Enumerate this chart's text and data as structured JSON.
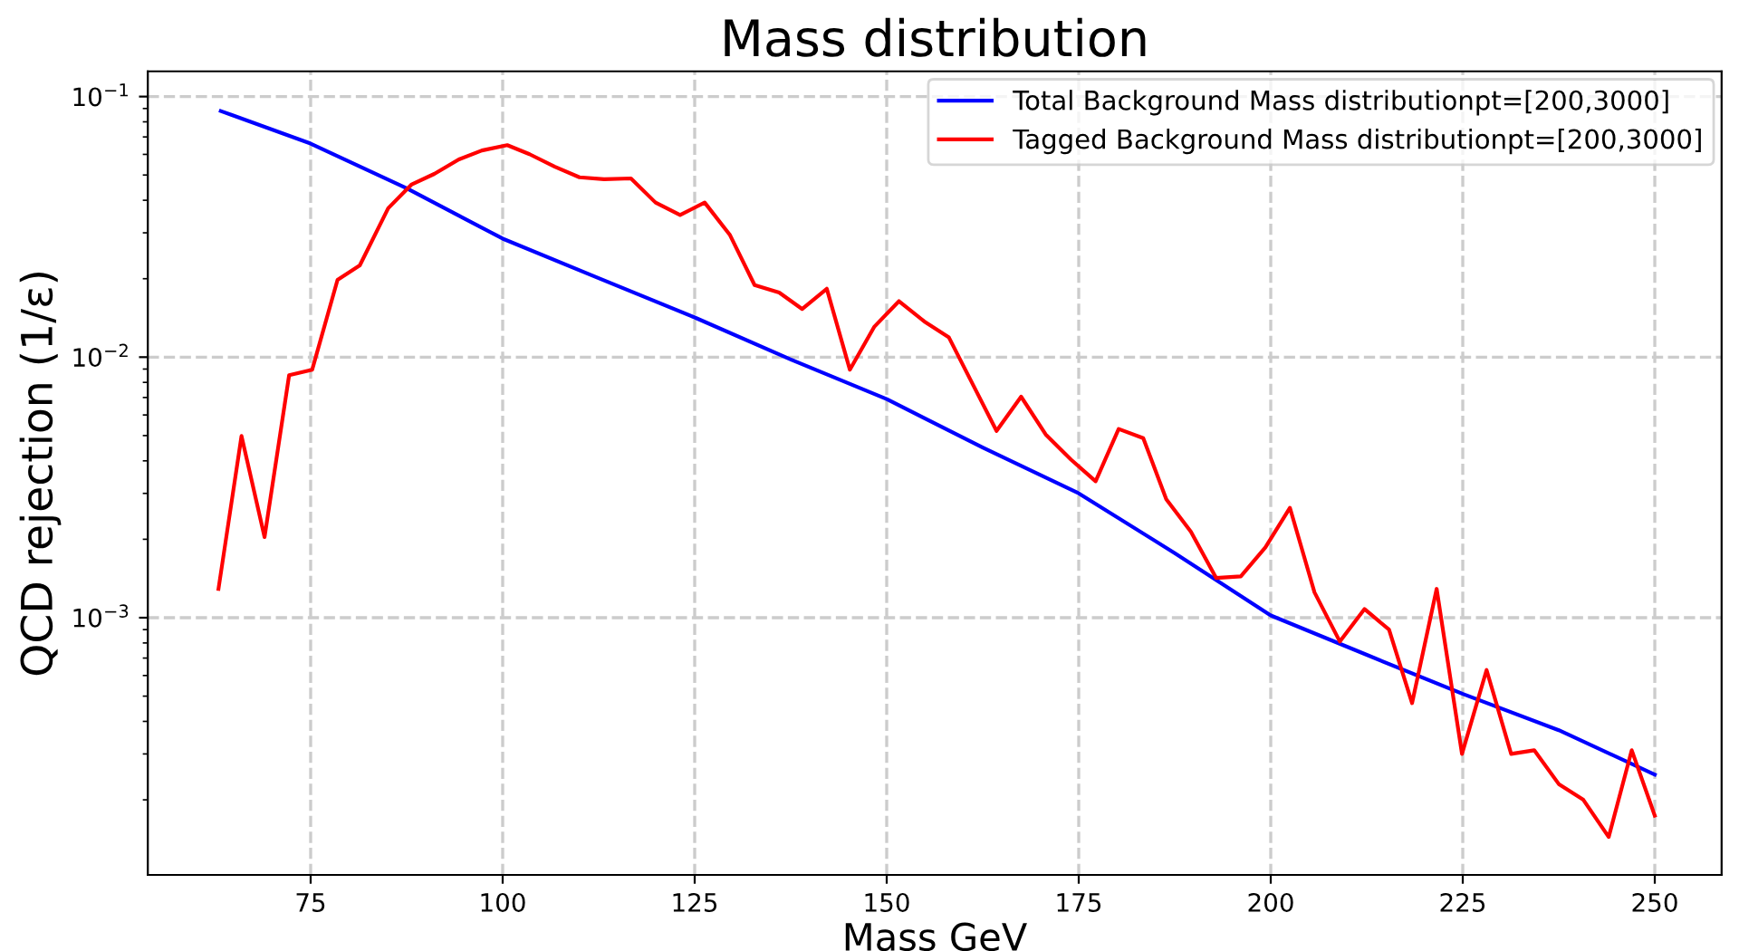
{
  "chart_data": {
    "type": "line",
    "title": "Mass distribution",
    "xlabel": "Mass GeV",
    "ylabel": "QCD rejection (1/ε)",
    "log": "y",
    "grid": true,
    "legend": "top right",
    "line_style": "dashed",
    "xlim": [
      53.8,
      258.7
    ],
    "xticks": [
      75,
      100,
      125,
      150,
      175,
      200,
      225,
      250
    ],
    "ylim": [
      0.000103,
      0.125
    ],
    "yticks": [
      {
        "value": 0.1,
        "label": "10$^{−1}$"
      },
      {
        "value": 0.01,
        "label": "10$^{−2}$"
      },
      {
        "value": 0.001,
        "label": "10$^{−3}$"
      }
    ],
    "series": [
      {
        "name": "Total Background Mass distributionpt=[200,3000]",
        "color": "#0000ff",
        "line_style": "solid",
        "x": [
          63.3,
          75,
          87.5,
          100,
          112.5,
          125,
          137.5,
          150,
          162.5,
          175,
          187.5,
          200,
          212.5,
          225,
          237.5,
          250
        ],
        "values": [
          0.088,
          0.066,
          0.0445,
          0.0285,
          0.0201,
          0.0142,
          0.0098,
          0.0069,
          0.0045,
          0.003,
          0.00177,
          0.00102,
          0.00072,
          0.00051,
          0.00037,
          0.00025
        ]
      },
      {
        "name": "Tagged Background Mass distributionpt=[200,3000]",
        "color": "#ff0000",
        "line_style": "solid",
        "x": [
          63.0,
          66.0,
          69.0,
          72.2,
          75.2,
          78.5,
          81.4,
          85.1,
          88.1,
          91.1,
          94.3,
          97.3,
          100.6,
          103.5,
          106.8,
          110.0,
          113.2,
          116.7,
          119.9,
          123.1,
          126.3,
          129.6,
          132.8,
          136.0,
          139.0,
          142.2,
          145.2,
          148.4,
          151.6,
          154.9,
          158.1,
          161.3,
          164.3,
          167.5,
          170.7,
          174.0,
          177.2,
          180.2,
          183.4,
          186.4,
          189.6,
          192.9,
          196.1,
          199.3,
          202.5,
          205.7,
          209.0,
          212.2,
          215.4,
          218.4,
          221.6,
          224.9,
          228.1,
          231.3,
          234.3,
          237.5,
          240.7,
          244.0,
          247.0,
          250.0
        ],
        "values": [
          0.00129,
          0.00498,
          0.00204,
          0.00853,
          0.00895,
          0.0198,
          0.0225,
          0.0373,
          0.0459,
          0.0505,
          0.0574,
          0.0621,
          0.0651,
          0.0601,
          0.0538,
          0.049,
          0.0482,
          0.0485,
          0.0392,
          0.0351,
          0.0392,
          0.0294,
          0.0189,
          0.0177,
          0.0153,
          0.0183,
          0.00895,
          0.0131,
          0.0164,
          0.0137,
          0.0119,
          0.00777,
          0.00521,
          0.00705,
          0.00505,
          0.00404,
          0.00334,
          0.0053,
          0.00489,
          0.00285,
          0.00214,
          0.00142,
          0.00144,
          0.00186,
          0.00264,
          0.00125,
          0.00081,
          0.00108,
          0.0009,
          0.00047,
          0.00129,
          0.0003,
          0.00063,
          0.0003,
          0.00031,
          0.00023,
          0.0002,
          0.000144,
          0.00031,
          0.000174
        ]
      }
    ]
  }
}
